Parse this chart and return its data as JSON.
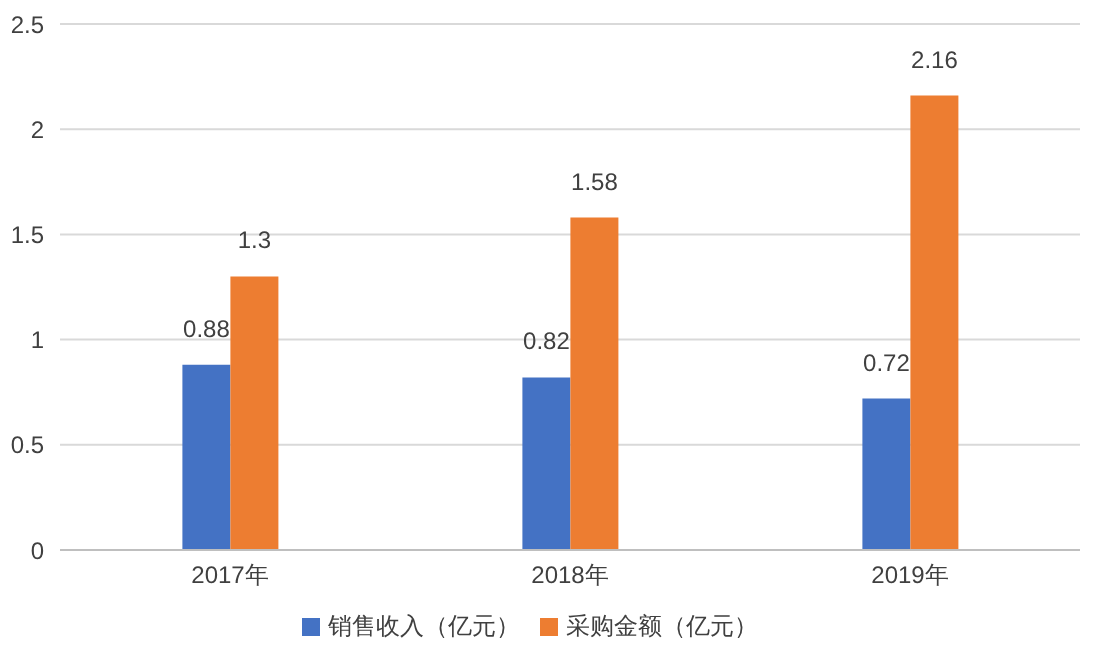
{
  "chart_data": {
    "type": "bar",
    "categories": [
      "2017年",
      "2018年",
      "2019年"
    ],
    "series": [
      {
        "name": "销售收入（亿元）",
        "color": "#4472c4",
        "values": [
          0.88,
          0.82,
          0.72
        ]
      },
      {
        "name": "采购金额（亿元）",
        "color": "#ed7d31",
        "values": [
          1.3,
          1.58,
          2.16
        ]
      }
    ],
    "ylim": [
      0,
      2.5
    ],
    "yticks": [
      0,
      0.5,
      1,
      1.5,
      2,
      2.5
    ],
    "grid": "y",
    "legend": "bottom",
    "data_labels": true
  }
}
